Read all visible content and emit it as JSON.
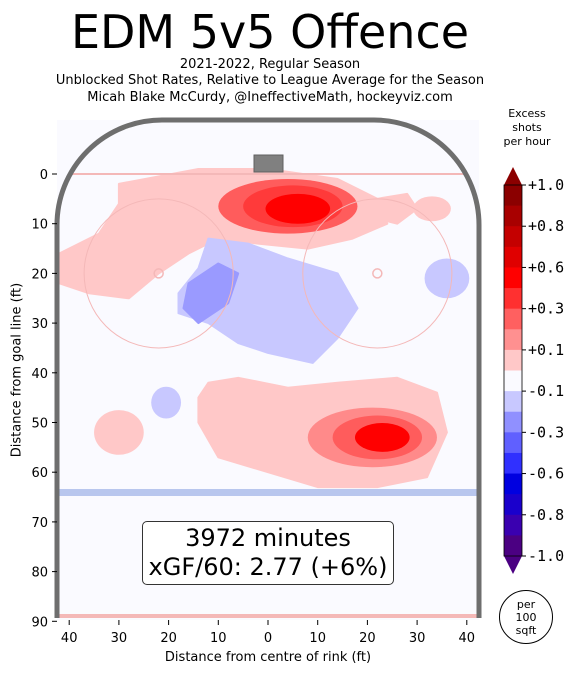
{
  "header": {
    "title": "EDM 5v5 Offence",
    "subtitle_lines": [
      "2021-2022, Regular Season",
      "Unblocked Shot Rates, Relative to League Average for the Season",
      "Micah Blake McCurdy, @IneffectiveMath, hockeyviz.com"
    ]
  },
  "summary": {
    "minutes": "3972 minutes",
    "xgf": "xGF/60: 2.77 (+6%)"
  },
  "colorbar": {
    "title_lines": [
      "Excess",
      "shots",
      "per hour"
    ],
    "ticks": [
      "+1.0",
      "+0.8",
      "+0.6",
      "+0.3",
      "+0.1",
      "-0.1",
      "-0.3",
      "-0.6",
      "-0.8",
      "-1.0"
    ],
    "per_area_lines": [
      "per",
      "100",
      "sqft"
    ]
  },
  "chart_data": {
    "type": "heatmap",
    "title": "EDM 5v5 Offence",
    "xlabel": "Distance from centre of rink (ft)",
    "ylabel": "Distance from goal line (ft)",
    "x_ticks": [
      40,
      30,
      20,
      10,
      0,
      10,
      20,
      30,
      40
    ],
    "y_ticks": [
      0,
      10,
      20,
      30,
      40,
      50,
      60,
      70,
      80,
      90
    ],
    "xlim": [
      -42.5,
      42.5
    ],
    "ylim": [
      -11,
      90
    ],
    "value_range": [
      -1.0,
      1.0
    ],
    "colors": {
      "pos_light": "#ffc8c8",
      "pos_mid": "#ff5c5c",
      "pos_strong": "#ff0000",
      "neg_light": "#c8c8ff",
      "neg_mid": "#9a9aff",
      "board": "#6e6e6e",
      "goal_line": "#f4b8b8",
      "blue_line": "#b8c6ee",
      "neutral": "#fafaff"
    },
    "colorbar_levels": [
      {
        "label": "+1.0",
        "color": "#8b0000"
      },
      {
        "label": "+0.8",
        "color": "#c40000"
      },
      {
        "label": "+0.6",
        "color": "#ff0000"
      },
      {
        "label": "+0.3",
        "color": "#ff6060"
      },
      {
        "label": "+0.1",
        "color": "#ffc8c8"
      },
      {
        "label": "-0.1",
        "color": "#c8c8ff"
      },
      {
        "label": "-0.3",
        "color": "#6060ff"
      },
      {
        "label": "-0.6",
        "color": "#0000e0"
      },
      {
        "label": "-0.8",
        "color": "#3a00b0"
      },
      {
        "label": "-1.0",
        "color": "#4b0082"
      }
    ],
    "hotspots": [
      {
        "x": 3,
        "y": 7,
        "peak": 0.9,
        "sign": "positive"
      },
      {
        "x": -22,
        "y": 10,
        "peak": 0.1,
        "sign": "positive"
      },
      {
        "x": 26,
        "y": 7,
        "peak": 0.1,
        "sign": "positive"
      },
      {
        "x": -40,
        "y": 22,
        "peak": 0.1,
        "sign": "positive"
      },
      {
        "x": -5,
        "y": 24,
        "peak": -0.3,
        "sign": "negative"
      },
      {
        "x": 36,
        "y": 21,
        "peak": -0.1,
        "sign": "negative"
      },
      {
        "x": -20,
        "y": 46,
        "peak": -0.1,
        "sign": "negative"
      },
      {
        "x": 20,
        "y": 53,
        "peak": 0.7,
        "sign": "positive"
      },
      {
        "x": -30,
        "y": 52,
        "peak": 0.1,
        "sign": "positive"
      },
      {
        "x": -12,
        "y": 43,
        "peak": 0.1,
        "sign": "positive"
      }
    ]
  }
}
